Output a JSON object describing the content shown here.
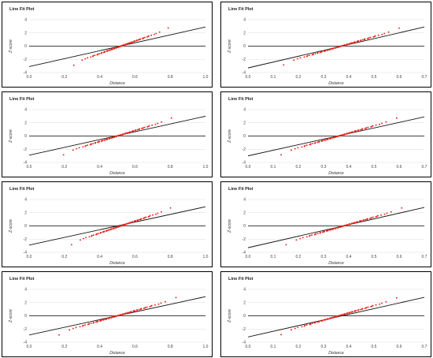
{
  "layout_note": "",
  "chart_data": [
    {
      "type": "scatter",
      "title": "Line Fit Plot",
      "xlabel": "Distance",
      "ylabel": "Z-score",
      "xlim": [
        0.0,
        1.0
      ],
      "ylim": [
        -4,
        4
      ],
      "xticks": [
        "0.0",
        "0.2",
        "0.4",
        "0.6",
        "0.8",
        "1.0"
      ],
      "yticks": [
        "-4",
        "-2",
        "0",
        "2",
        "4"
      ],
      "grid": true,
      "series_color": "#e8251f",
      "fit": {
        "x": [
          0.0,
          1.0
        ],
        "y": [
          -3.1,
          2.9
        ]
      },
      "points": {
        "x_min": 0.14,
        "x_max": 0.86,
        "x_center": 0.52,
        "spread": 0.105,
        "tail_dip": 0.35,
        "n": 90
      }
    },
    {
      "type": "scatter",
      "title": "Line Fit Plot",
      "xlabel": "Distance",
      "ylabel": "Z-score",
      "xlim": [
        0.0,
        0.7
      ],
      "ylim": [
        -4,
        4
      ],
      "xticks": [
        "0.0",
        "0.1",
        "0.2",
        "0.3",
        "0.4",
        "0.5",
        "0.6",
        "0.7"
      ],
      "yticks": [
        "-4",
        "-2",
        "0",
        "2",
        "4"
      ],
      "grid": true,
      "series_color": "#e8251f",
      "fit": {
        "x": [
          0.0,
          0.7
        ],
        "y": [
          -3.3,
          2.9
        ]
      },
      "points": {
        "x_min": 0.1,
        "x_max": 0.66,
        "x_center": 0.37,
        "spread": 0.09,
        "tail_dip": 0.3,
        "n": 90
      }
    },
    {
      "type": "scatter",
      "title": "Line Fit Plot",
      "xlabel": "Distance",
      "ylabel": "Z-score",
      "xlim": [
        0.0,
        1.0
      ],
      "ylim": [
        -4,
        4
      ],
      "xticks": [
        "0.0",
        "0.2",
        "0.4",
        "0.6",
        "0.8",
        "1.0"
      ],
      "yticks": [
        "-4",
        "-2",
        "0",
        "2",
        "4"
      ],
      "grid": true,
      "series_color": "#e8251f",
      "fit": {
        "x": [
          0.0,
          1.0
        ],
        "y": [
          -2.9,
          3.0
        ]
      },
      "points": {
        "x_min": 0.06,
        "x_max": 0.85,
        "x_center": 0.5,
        "spread": 0.12,
        "tail_dip": 0.3,
        "n": 90
      }
    },
    {
      "type": "scatter",
      "title": "Line Fit Plot",
      "xlabel": "Distance",
      "ylabel": "Z-score",
      "xlim": [
        0.0,
        0.7
      ],
      "ylim": [
        -4,
        4
      ],
      "xticks": [
        "0.0",
        "0.1",
        "0.2",
        "0.3",
        "0.4",
        "0.5",
        "0.6",
        "0.7"
      ],
      "yticks": [
        "-4",
        "-2",
        "0",
        "2",
        "4"
      ],
      "grid": true,
      "series_color": "#e8251f",
      "fit": {
        "x": [
          0.0,
          0.7
        ],
        "y": [
          -3.0,
          2.9
        ]
      },
      "points": {
        "x_min": 0.09,
        "x_max": 0.65,
        "x_center": 0.36,
        "spread": 0.09,
        "tail_dip": 0.3,
        "n": 90
      }
    },
    {
      "type": "scatter",
      "title": "Line Fit Plot",
      "xlabel": "Distance",
      "ylabel": "Z-score",
      "xlim": [
        0.0,
        1.0
      ],
      "ylim": [
        -4,
        4
      ],
      "xticks": [
        "0.0",
        "0.2",
        "0.4",
        "0.6",
        "0.8",
        "1.0"
      ],
      "yticks": [
        "-4",
        "-2",
        "0",
        "2",
        "4"
      ],
      "grid": true,
      "series_color": "#e8251f",
      "fit": {
        "x": [
          0.0,
          1.0
        ],
        "y": [
          -2.9,
          2.9
        ]
      },
      "points": {
        "x_min": 0.1,
        "x_max": 0.86,
        "x_center": 0.52,
        "spread": 0.11,
        "tail_dip": 0.3,
        "n": 90
      }
    },
    {
      "type": "scatter",
      "title": "Line Fit Plot",
      "xlabel": "Distance",
      "ylabel": "Z-score",
      "xlim": [
        0.0,
        0.7
      ],
      "ylim": [
        -4,
        4
      ],
      "xticks": [
        "0.0",
        "0.1",
        "0.2",
        "0.3",
        "0.4",
        "0.5",
        "0.6",
        "0.7"
      ],
      "yticks": [
        "-4",
        "-2",
        "0",
        "2",
        "4"
      ],
      "grid": true,
      "series_color": "#e8251f",
      "fit": {
        "x": [
          0.0,
          0.7
        ],
        "y": [
          -3.3,
          2.8
        ]
      },
      "points": {
        "x_min": 0.1,
        "x_max": 0.67,
        "x_center": 0.38,
        "spread": 0.09,
        "tail_dip": 0.3,
        "n": 90
      }
    },
    {
      "type": "scatter",
      "title": "Line Fit Plot",
      "xlabel": "Distance",
      "ylabel": "Z-score",
      "xlim": [
        0.0,
        1.0
      ],
      "ylim": [
        -4,
        4
      ],
      "xticks": [
        "0.0",
        "0.2",
        "0.4",
        "0.6",
        "0.8",
        "1.0"
      ],
      "yticks": [
        "-4",
        "-2",
        "0",
        "2",
        "4"
      ],
      "grid": true,
      "series_color": "#e8251f",
      "fit": {
        "x": [
          0.0,
          1.0
        ],
        "y": [
          -2.9,
          2.9
        ]
      },
      "points": {
        "x_min": 0.03,
        "x_max": 0.86,
        "x_center": 0.5,
        "spread": 0.13,
        "tail_dip": 0.35,
        "n": 90
      }
    },
    {
      "type": "scatter",
      "title": "Line Fit Plot",
      "xlabel": "Distance",
      "ylabel": "Z-score",
      "xlim": [
        0.0,
        0.7
      ],
      "ylim": [
        -4,
        4
      ],
      "xticks": [
        "0.0",
        "0.1",
        "0.2",
        "0.3",
        "0.4",
        "0.5",
        "0.6",
        "0.7"
      ],
      "yticks": [
        "-4",
        "-2",
        "0",
        "2",
        "4"
      ],
      "grid": true,
      "series_color": "#e8251f",
      "fit": {
        "x": [
          0.0,
          0.7
        ],
        "y": [
          -3.2,
          2.8
        ]
      },
      "points": {
        "x_min": 0.09,
        "x_max": 0.65,
        "x_center": 0.36,
        "spread": 0.09,
        "tail_dip": 0.3,
        "n": 90
      }
    }
  ]
}
